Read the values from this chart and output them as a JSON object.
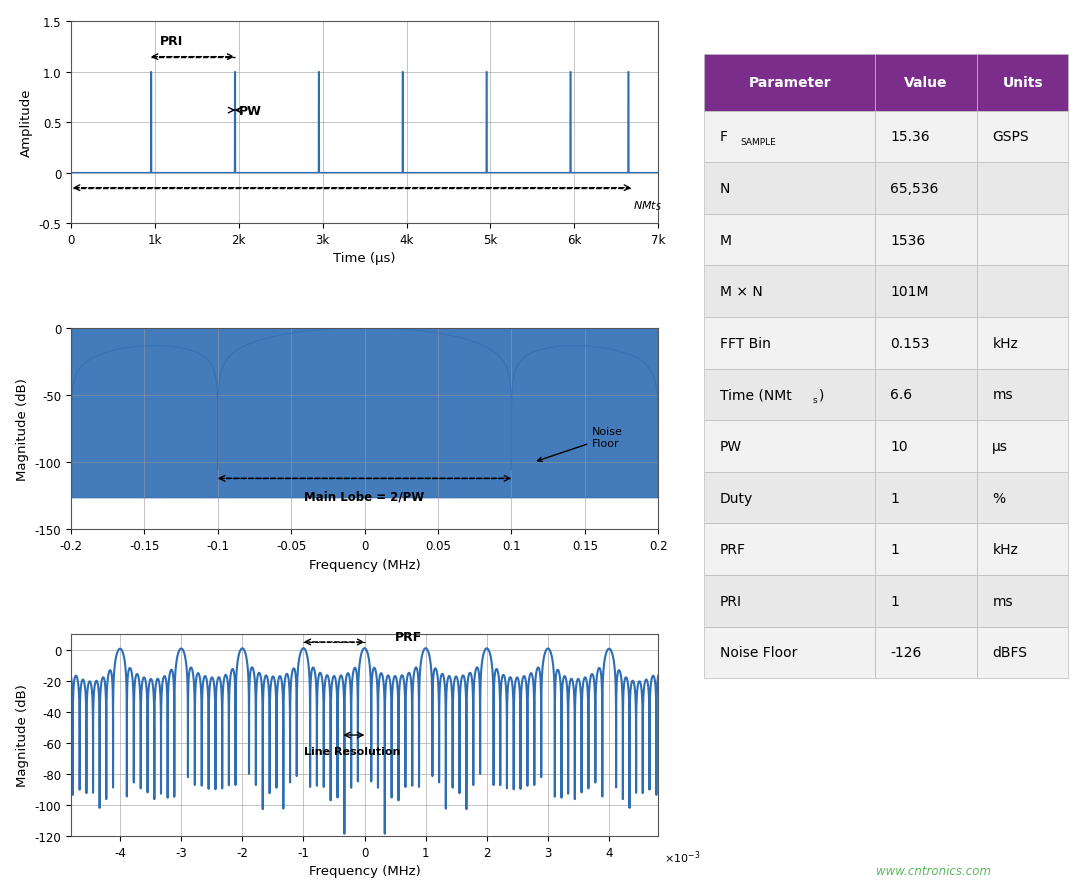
{
  "table_header_color": "#7B2D8B",
  "table_header_text_color": "#FFFFFF",
  "table_row_alt_color": "#E8E8E8",
  "table_row_color": "#F2F2F2",
  "line_color": "#2E6DB4",
  "grid_color": "#999999",
  "website_text": "www.cntronics.com",
  "website_color": "#5BB85D",
  "plot1_ylim": [
    -0.5,
    1.5
  ],
  "plot1_xlim": [
    0,
    7000
  ],
  "plot1_yticks": [
    -0.5,
    0.0,
    0.5,
    1.0,
    1.5
  ],
  "plot1_xtick_vals": [
    0,
    1000,
    2000,
    3000,
    4000,
    5000,
    6000,
    7000
  ],
  "plot1_xtick_labels": [
    "0",
    "1k",
    "2k",
    "3k",
    "4k",
    "5k",
    "6k",
    "7k"
  ],
  "plot1_xlabel": "Time (μs)",
  "plot1_ylabel": "Amplitude",
  "plot2_ylim": [
    -150,
    0
  ],
  "plot2_xlim": [
    -0.2,
    0.2
  ],
  "plot2_yticks": [
    0,
    -50,
    -100,
    -150
  ],
  "plot2_xticks": [
    -0.2,
    -0.15,
    -0.1,
    -0.05,
    0,
    0.05,
    0.1,
    0.15,
    0.2
  ],
  "plot2_xtick_labels": [
    "-0.2",
    "-0.15",
    "-0.1",
    "-0.05",
    "0",
    "0.05",
    "0.1",
    "0.15",
    "0.2"
  ],
  "plot2_xlabel": "Frequency (MHz)",
  "plot2_ylabel": "Magnitude (dB)",
  "plot3_ylim": [
    -120,
    10
  ],
  "plot3_xlim": [
    -0.0048,
    0.0048
  ],
  "plot3_yticks": [
    0,
    -20,
    -40,
    -60,
    -80,
    -100,
    -120
  ],
  "plot3_xtick_vals": [
    -0.004,
    -0.003,
    -0.002,
    -0.001,
    0,
    0.001,
    0.002,
    0.003,
    0.004
  ],
  "plot3_xtick_labels": [
    "-4",
    "-3",
    "-2",
    "-1",
    "0",
    "1",
    "2",
    "3",
    "4"
  ],
  "plot3_xlabel": "Frequency (MHz)",
  "plot3_ylabel": "Magnitude (dB)",
  "table_params": [
    "FₛAMPLE",
    "N",
    "M",
    "M × N",
    "FFT Bin",
    "Time (NMtₛ)",
    "PW",
    "Duty",
    "PRF",
    "PRI",
    "Noise Floor"
  ],
  "table_values": [
    "15.36",
    "65,536",
    "1536",
    "101M",
    "0.153",
    "6.6",
    "10",
    "1",
    "1",
    "1",
    "-126"
  ],
  "table_units": [
    "GSPS",
    "",
    "",
    "",
    "kHz",
    "ms",
    "μs",
    "%",
    "kHz",
    "ms",
    "dBFS"
  ]
}
